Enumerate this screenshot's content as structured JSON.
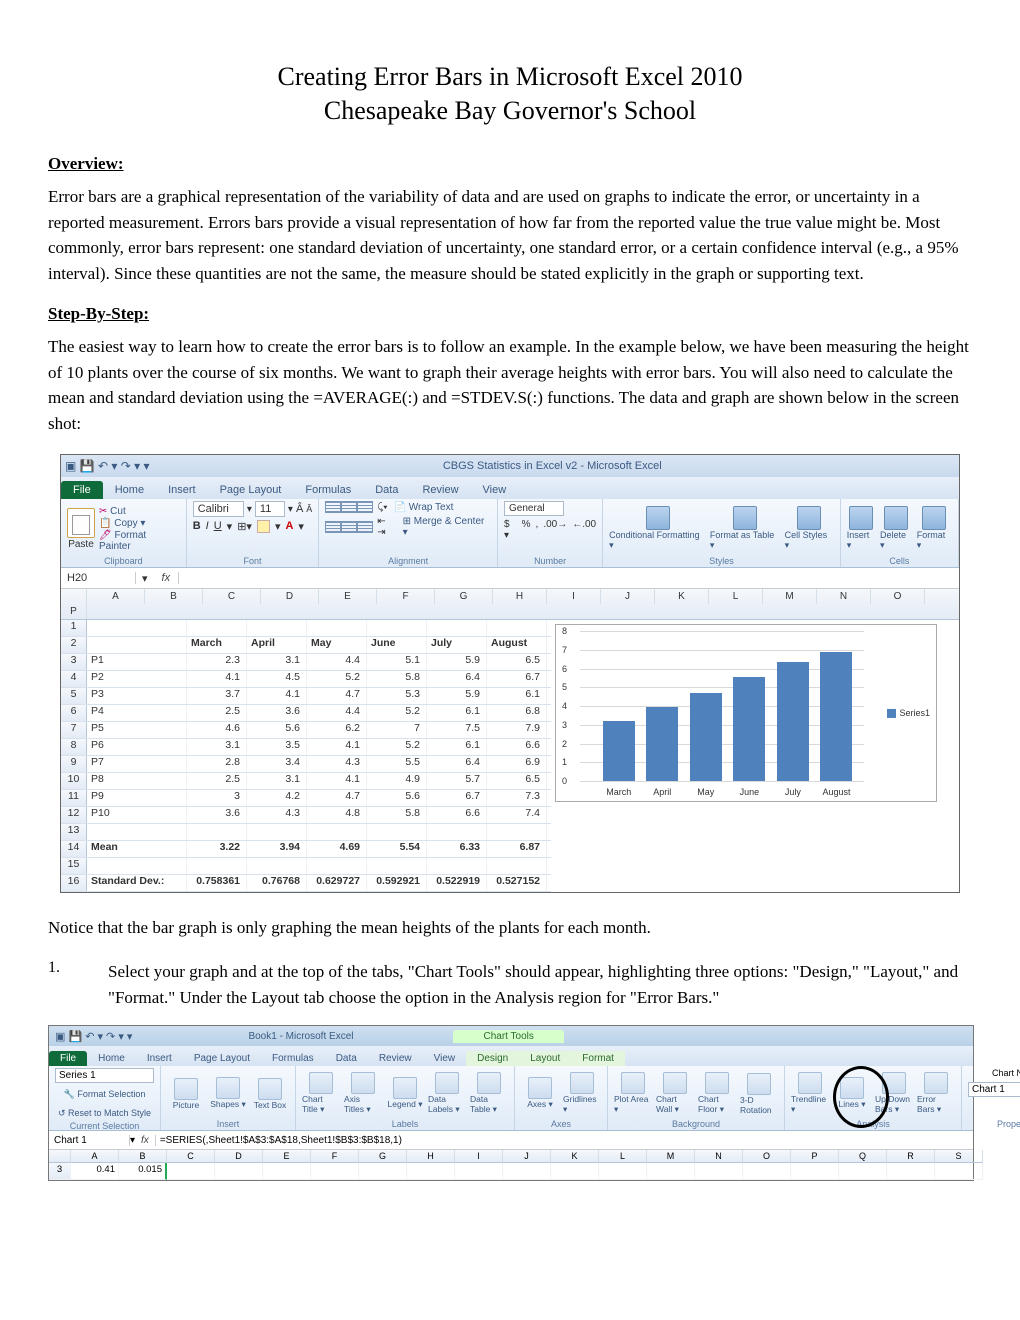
{
  "doc": {
    "title": "Creating Error Bars in Microsoft Excel 2010",
    "subtitle": "Chesapeake Bay Governor's School",
    "overview_head": "Overview:",
    "overview_text": "Error bars are a graphical representation of the variability of data and are used on graphs to indicate the error, or uncertainty in a reported measurement. Errors bars provide a visual representation of how far from the reported value the true value might be. Most commonly, error bars represent: one standard deviation of uncertainty, one standard error, or a certain confidence interval (e.g., a 95% interval). Since these quantities are not the same, the measure should be stated explicitly in the graph or supporting text.",
    "step_head": "Step-By-Step:",
    "step_intro": "The easiest way to learn how to create the error bars is to follow an example.  In the example below, we have been measuring the height of 10 plants over the course of six months.  We want to graph their average heights with error bars.  You will also need to calculate the mean and standard deviation using the =AVERAGE(:) and =STDEV.S(:) functions. The data and graph are shown below in the screen shot:",
    "notice": "Notice that the bar graph is only graphing the mean heights of the plants for each month.",
    "step1_num": "1.",
    "step1_text": "Select your graph and at the top of the tabs, \"Chart Tools\" should appear, highlighting three options: \"Design,\" \"Layout,\" and \"Format.\"  Under the Layout tab choose the option in the Analysis region for \"Error Bars.\""
  },
  "ss1": {
    "app_title": "CBGS Statistics in Excel v2 - Microsoft Excel",
    "tabs": [
      "File",
      "Home",
      "Insert",
      "Page Layout",
      "Formulas",
      "Data",
      "Review",
      "View"
    ],
    "active_tab": 0,
    "clipboard": {
      "paste": "Paste",
      "cut": "Cut",
      "copy": "Copy ▾",
      "fp": "Format Painter",
      "label": "Clipboard"
    },
    "font": {
      "name": "Calibri",
      "size": "11",
      "label": "Font"
    },
    "align": {
      "wrap": "Wrap Text",
      "merge": "Merge & Center ▾",
      "label": "Alignment"
    },
    "number": {
      "fmt": "General",
      "label": "Number"
    },
    "styles": {
      "cf": "Conditional\nFormatting ▾",
      "ft": "Format\nas Table ▾",
      "cs": "Cell\nStyles ▾",
      "label": "Styles"
    },
    "cells": {
      "ins": "Insert\n▾",
      "del": "Delete\n▾",
      "fmt": "Format\n▾",
      "label": "Cells"
    },
    "namebox": "H20",
    "cols": [
      "",
      "A",
      "B",
      "C",
      "D",
      "E",
      "F",
      "G",
      "H",
      "I",
      "J",
      "K",
      "L",
      "M",
      "N",
      "O",
      "P"
    ],
    "months": [
      "March",
      "April",
      "May",
      "June",
      "July",
      "August"
    ],
    "rows": [
      {
        "n": "1",
        "label": "",
        "v": [
          "",
          "",
          "",
          "",
          "",
          ""
        ]
      },
      {
        "n": "2",
        "label": "",
        "v": [
          "March",
          "April",
          "May",
          "June",
          "July",
          "August"
        ],
        "bold": true,
        "left": true
      },
      {
        "n": "3",
        "label": "P1",
        "v": [
          "2.3",
          "3.1",
          "4.4",
          "5.1",
          "5.9",
          "6.5"
        ]
      },
      {
        "n": "4",
        "label": "P2",
        "v": [
          "4.1",
          "4.5",
          "5.2",
          "5.8",
          "6.4",
          "6.7"
        ]
      },
      {
        "n": "5",
        "label": "P3",
        "v": [
          "3.7",
          "4.1",
          "4.7",
          "5.3",
          "5.9",
          "6.1"
        ]
      },
      {
        "n": "6",
        "label": "P4",
        "v": [
          "2.5",
          "3.6",
          "4.4",
          "5.2",
          "6.1",
          "6.8"
        ]
      },
      {
        "n": "7",
        "label": "P5",
        "v": [
          "4.6",
          "5.6",
          "6.2",
          "7",
          "7.5",
          "7.9"
        ]
      },
      {
        "n": "8",
        "label": "P6",
        "v": [
          "3.1",
          "3.5",
          "4.1",
          "5.2",
          "6.1",
          "6.6"
        ]
      },
      {
        "n": "9",
        "label": "P7",
        "v": [
          "2.8",
          "3.4",
          "4.3",
          "5.5",
          "6.4",
          "6.9"
        ]
      },
      {
        "n": "10",
        "label": "P8",
        "v": [
          "2.5",
          "3.1",
          "4.1",
          "4.9",
          "5.7",
          "6.5"
        ]
      },
      {
        "n": "11",
        "label": "P9",
        "v": [
          "3",
          "4.2",
          "4.7",
          "5.6",
          "6.7",
          "7.3"
        ]
      },
      {
        "n": "12",
        "label": "P10",
        "v": [
          "3.6",
          "4.3",
          "4.8",
          "5.8",
          "6.6",
          "7.4"
        ]
      },
      {
        "n": "13",
        "label": "",
        "v": [
          "",
          "",
          "",
          "",
          "",
          ""
        ]
      },
      {
        "n": "14",
        "label": "Mean",
        "v": [
          "3.22",
          "3.94",
          "4.69",
          "5.54",
          "6.33",
          "6.87"
        ],
        "bold": true
      },
      {
        "n": "15",
        "label": "",
        "v": [
          "",
          "",
          "",
          "",
          "",
          ""
        ]
      },
      {
        "n": "16",
        "label": "Standard Dev.:",
        "v": [
          "0.758361",
          "0.76768",
          "0.629727",
          "0.592921",
          "0.522919",
          "0.527152"
        ],
        "bold": true
      }
    ],
    "chart": {
      "ymax": 8,
      "ylabels": [
        "0",
        "1",
        "2",
        "3",
        "4",
        "5",
        "6",
        "7",
        "8"
      ],
      "values": [
        3.22,
        3.94,
        4.69,
        5.54,
        6.33,
        6.87
      ],
      "xlabels": [
        "March",
        "April",
        "May",
        "June",
        "July",
        "August"
      ],
      "bar_color": "#4f81bd",
      "legend": "Series1"
    }
  },
  "ss2": {
    "doc_title": "Book1 - Microsoft Excel",
    "chart_tools": "Chart Tools",
    "tabs": [
      "File",
      "Home",
      "Insert",
      "Page Layout",
      "Formulas",
      "Data",
      "Review",
      "View"
    ],
    "ctabs": [
      "Design",
      "Layout",
      "Format"
    ],
    "cur_sel": {
      "value": "Series 1",
      "fs": "Format Selection",
      "rs": "Reset to Match Style",
      "label": "Current Selection"
    },
    "insert": {
      "pic": "Picture",
      "sh": "Shapes\n▾",
      "tb": "Text\nBox",
      "label": "Insert"
    },
    "labels": {
      "ct": "Chart\nTitle ▾",
      "at": "Axis\nTitles ▾",
      "lg": "Legend\n▾",
      "dl": "Data\nLabels ▾",
      "dt": "Data\nTable ▾",
      "label": "Labels"
    },
    "axes": {
      "ax": "Axes\n▾",
      "gl": "Gridlines\n▾",
      "label": "Axes"
    },
    "bg": {
      "pa": "Plot\nArea ▾",
      "cw": "Chart\nWall ▾",
      "cf": "Chart\nFloor ▾",
      "rot": "3-D\nRotation",
      "label": "Background"
    },
    "analysis": {
      "tl": "Trendline\n▾",
      "ln": "Lines\n▾",
      "ud": "Up/Down\nBars ▾",
      "eb": "Error\nBars ▾",
      "label": "Analysis"
    },
    "props": {
      "cn": "Chart Name:",
      "cv": "Chart 1",
      "label": "Properties"
    },
    "namebox": "Chart 1",
    "formula": "=SERIES(,Sheet1!$A$3:$A$18,Sheet1!$B$3:$B$18,1)",
    "cols": [
      "",
      "A",
      "B",
      "C",
      "D",
      "E",
      "F",
      "G",
      "H",
      "I",
      "J",
      "K",
      "L",
      "M",
      "N",
      "O",
      "P",
      "Q",
      "R",
      "S"
    ],
    "row": {
      "n": "3",
      "a": "0.41",
      "b": "0.015"
    }
  }
}
